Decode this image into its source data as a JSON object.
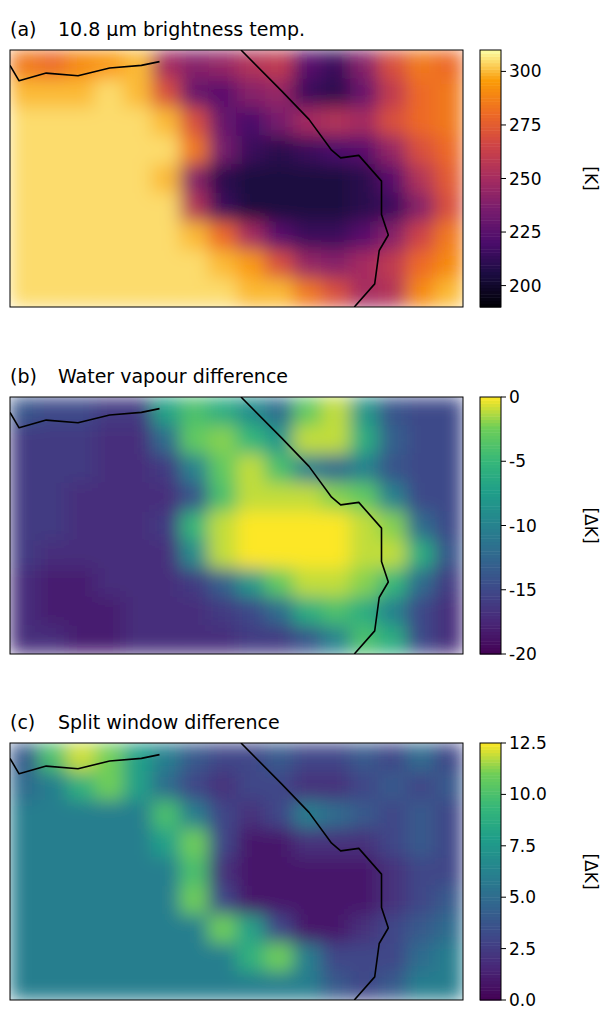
{
  "chart_data": [
    {
      "type": "heatmap",
      "label": "(a)",
      "title": "10.8 μm brightness temp.",
      "color": "inferno",
      "tick_labels": false,
      "colorbar_label": "[K]",
      "colorbar_range": [
        190,
        310
      ],
      "colorbar_ticks": [
        200,
        225,
        250,
        275,
        300
      ],
      "values": [
        [
          285,
          280,
          290,
          295,
          300,
          250,
          240,
          245,
          255,
          260,
          225,
          215,
          240,
          270,
          285,
          280
        ],
        [
          300,
          300,
          300,
          305,
          300,
          270,
          230,
          225,
          240,
          245,
          215,
          210,
          230,
          260,
          280,
          285
        ],
        [
          305,
          305,
          305,
          305,
          305,
          300,
          270,
          230,
          220,
          235,
          250,
          255,
          250,
          270,
          280,
          285
        ],
        [
          305,
          305,
          305,
          305,
          305,
          305,
          285,
          235,
          215,
          210,
          215,
          220,
          225,
          245,
          270,
          280
        ],
        [
          305,
          305,
          305,
          305,
          305,
          300,
          240,
          210,
          205,
          205,
          205,
          205,
          210,
          225,
          255,
          275
        ],
        [
          305,
          305,
          305,
          305,
          305,
          305,
          255,
          215,
          205,
          205,
          205,
          205,
          210,
          215,
          240,
          270
        ],
        [
          305,
          305,
          305,
          305,
          305,
          305,
          300,
          280,
          250,
          225,
          215,
          215,
          225,
          240,
          265,
          285
        ],
        [
          305,
          305,
          305,
          305,
          305,
          305,
          305,
          300,
          295,
          270,
          245,
          240,
          250,
          260,
          280,
          290
        ],
        [
          305,
          305,
          305,
          305,
          305,
          305,
          305,
          305,
          300,
          300,
          285,
          270,
          250,
          255,
          290,
          300
        ]
      ]
    },
    {
      "type": "heatmap",
      "label": "(b)",
      "title": "Water vapour difference",
      "color": "viridis",
      "tick_labels": false,
      "colorbar_label": "[ΔK]",
      "colorbar_range": [
        -20,
        0
      ],
      "colorbar_ticks": [
        0,
        -5,
        -10,
        -15,
        -20
      ],
      "values": [
        [
          -14,
          -15,
          -15,
          -16,
          -16,
          -7,
          -4,
          -6,
          -9,
          -12,
          -3,
          -1,
          -8,
          -14,
          -15,
          -15
        ],
        [
          -16,
          -16,
          -16,
          -17,
          -17,
          -12,
          -3,
          -2,
          -5,
          -8,
          -1,
          -1,
          -6,
          -13,
          -15,
          -15
        ],
        [
          -16,
          -16,
          -16,
          -17,
          -17,
          -16,
          -10,
          -3,
          -1,
          -4,
          -10,
          -12,
          -10,
          -14,
          -15,
          -15
        ],
        [
          -16,
          -16,
          -17,
          -17,
          -17,
          -17,
          -14,
          -4,
          -1,
          -1,
          -1,
          -2,
          -3,
          -10,
          -15,
          -15
        ],
        [
          -16,
          -16,
          -17,
          -17,
          -17,
          -16,
          -5,
          -1,
          0,
          0,
          0,
          0,
          -1,
          -2,
          -12,
          -15
        ],
        [
          -16,
          -17,
          -17,
          -17,
          -17,
          -17,
          -9,
          -1,
          0,
          0,
          0,
          0,
          -1,
          -1,
          -6,
          -14
        ],
        [
          -17,
          -18,
          -18,
          -17,
          -17,
          -17,
          -16,
          -13,
          -8,
          -3,
          -1,
          -1,
          -2,
          -5,
          -12,
          -16
        ],
        [
          -17,
          -18,
          -18,
          -18,
          -17,
          -17,
          -17,
          -16,
          -15,
          -12,
          -6,
          -4,
          -6,
          -10,
          -15,
          -17
        ],
        [
          -17,
          -17,
          -18,
          -18,
          -17,
          -17,
          -17,
          -17,
          -16,
          -16,
          -14,
          -10,
          -4,
          -6,
          -15,
          -17
        ]
      ]
    },
    {
      "type": "heatmap",
      "label": "(c)",
      "title": "Split window difference",
      "color": "viridis",
      "tick_labels": false,
      "colorbar_label": "[ΔK]",
      "colorbar_range": [
        0,
        12.5
      ],
      "colorbar_ticks": [
        {
          "value": 0,
          "label": "0.0"
        },
        2.5,
        {
          "value": 5,
          "label": "5.0"
        },
        7.5,
        {
          "value": 10,
          "label": "10.0"
        },
        12.5
      ],
      "values": [
        [
          4,
          10,
          12,
          11,
          8,
          6,
          4,
          3,
          3,
          4,
          3,
          3,
          4,
          3,
          5,
          3
        ],
        [
          5,
          6,
          9,
          11,
          8,
          5,
          3,
          2,
          3,
          3,
          2,
          2,
          3,
          4,
          3,
          4
        ],
        [
          6,
          6,
          6,
          6,
          6,
          10,
          6,
          3,
          2,
          3,
          6,
          5,
          4,
          3,
          4,
          3
        ],
        [
          6,
          6,
          6,
          6,
          6,
          8,
          11,
          3,
          1,
          1,
          2,
          2,
          2,
          3,
          4,
          3
        ],
        [
          6,
          6,
          6,
          6,
          6,
          6,
          10,
          2,
          1,
          1,
          1,
          1,
          1,
          2,
          3,
          3
        ],
        [
          6,
          6,
          6,
          6,
          6,
          6,
          11,
          3,
          1,
          1,
          1,
          1,
          1,
          2,
          3,
          4
        ],
        [
          6,
          6,
          6,
          6,
          6,
          6,
          6,
          11,
          8,
          3,
          1,
          1,
          2,
          3,
          4,
          5
        ],
        [
          6,
          6,
          6,
          6,
          6,
          6,
          6,
          6,
          9,
          11,
          6,
          3,
          3,
          3,
          5,
          6
        ],
        [
          6,
          6,
          6,
          6,
          6,
          6,
          6,
          6,
          6,
          6,
          6,
          4,
          3,
          4,
          6,
          6
        ]
      ]
    }
  ]
}
